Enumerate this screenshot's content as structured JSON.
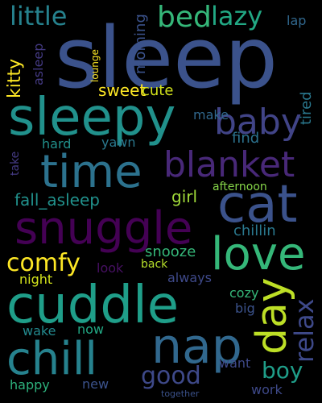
{
  "words": [
    {
      "text": "sleep",
      "color": "#3b528b"
    },
    {
      "text": "sleepy",
      "color": "#21918c"
    },
    {
      "text": "time",
      "color": "#2c728e"
    },
    {
      "text": "cat",
      "color": "#3b528b"
    },
    {
      "text": "snuggle",
      "color": "#440154"
    },
    {
      "text": "blanket",
      "color": "#482878"
    },
    {
      "text": "love",
      "color": "#35b779"
    },
    {
      "text": "cuddle",
      "color": "#1f9e89"
    },
    {
      "text": "nap",
      "color": "#31688e"
    },
    {
      "text": "chill",
      "color": "#26828e"
    },
    {
      "text": "day",
      "color": "#bddf26"
    },
    {
      "text": "baby",
      "color": "#414487"
    },
    {
      "text": "bed",
      "color": "#35b779"
    },
    {
      "text": "little",
      "color": "#26828e"
    },
    {
      "text": "lazy",
      "color": "#22a884"
    },
    {
      "text": "comfy",
      "color": "#fde725"
    },
    {
      "text": "relax",
      "color": "#3e4989"
    },
    {
      "text": "good",
      "color": "#3e4989"
    },
    {
      "text": "boy",
      "color": "#1f9e89"
    },
    {
      "text": "kitty",
      "color": "#fde725"
    },
    {
      "text": "sweet",
      "color": "#fde725"
    },
    {
      "text": "cute",
      "color": "#d2e21b"
    },
    {
      "text": "make",
      "color": "#31688e"
    },
    {
      "text": "tired",
      "color": "#2a788e"
    },
    {
      "text": "lap",
      "color": "#31688e"
    },
    {
      "text": "morning",
      "color": "#3b528b"
    },
    {
      "text": "asleep",
      "color": "#443a83"
    },
    {
      "text": "lounge",
      "color": "#fde725"
    },
    {
      "text": "fall_asleep",
      "color": "#21918c"
    },
    {
      "text": "girl",
      "color": "#a0da39"
    },
    {
      "text": "afternoon",
      "color": "#86d549"
    },
    {
      "text": "chillin",
      "color": "#2a788e"
    },
    {
      "text": "snooze",
      "color": "#35b779"
    },
    {
      "text": "find",
      "color": "#2c728e"
    },
    {
      "text": "yawn",
      "color": "#2a788e"
    },
    {
      "text": "hard",
      "color": "#21918c"
    },
    {
      "text": "take",
      "color": "#443a83"
    },
    {
      "text": "look",
      "color": "#471063"
    },
    {
      "text": "back",
      "color": "#b5de2b"
    },
    {
      "text": "night",
      "color": "#d2e21b"
    },
    {
      "text": "always",
      "color": "#3e4989"
    },
    {
      "text": "cozy",
      "color": "#35b779"
    },
    {
      "text": "big",
      "color": "#3b528b"
    },
    {
      "text": "wake",
      "color": "#23898e"
    },
    {
      "text": "now",
      "color": "#22a884"
    },
    {
      "text": "want",
      "color": "#3e4989"
    },
    {
      "text": "happy",
      "color": "#2db27d"
    },
    {
      "text": "new",
      "color": "#3b528b"
    },
    {
      "text": "work",
      "color": "#3e4989"
    },
    {
      "text": "together",
      "color": "#3b528b"
    }
  ]
}
